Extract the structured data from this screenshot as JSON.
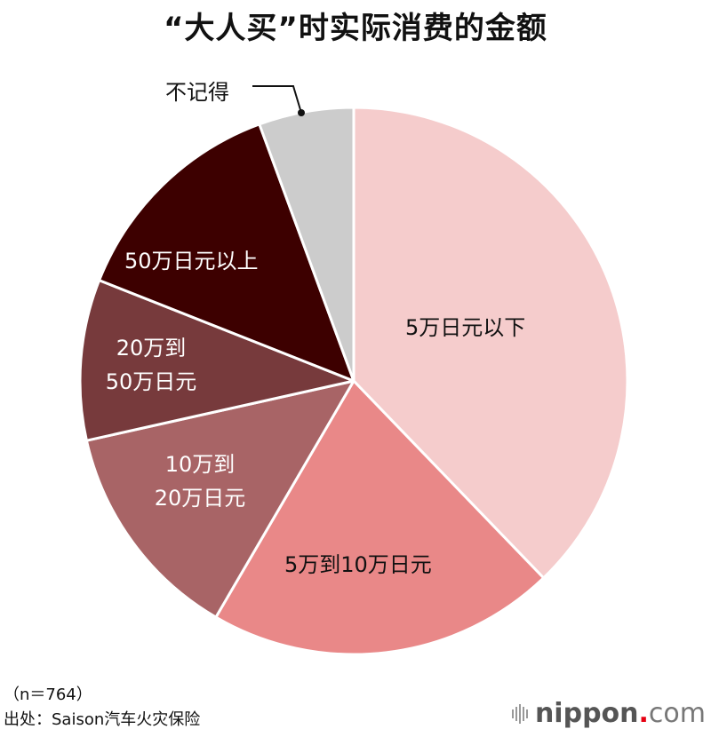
{
  "title": "“大人买”时实际消费的金额",
  "chart_data": {
    "type": "pie",
    "title": "“大人买”时实际消费的金额",
    "start_angle_deg": 0,
    "direction": "clockwise",
    "unit": "%",
    "slices": [
      {
        "label": "5万日元以下",
        "value": 37.8,
        "color": "#f5cccc"
      },
      {
        "label": "5万到10万日元",
        "value": 20.6,
        "color": "#e98888"
      },
      {
        "label": "10万到20万日元",
        "value": 13.1,
        "color": "#a86466"
      },
      {
        "label": "20万到50万日元",
        "value": 9.5,
        "color": "#773a3c"
      },
      {
        "label": "50万日元以上",
        "value": 13.4,
        "color": "#3d0000"
      },
      {
        "label": "不记得",
        "value": 5.6,
        "color": "#cccccc"
      }
    ],
    "sample_size": "n=764",
    "source": "Saison汽车火灾保险"
  },
  "labels": {
    "s0": "5万日元以下",
    "s1": "5万到10万日元",
    "s2_line1": "10万到",
    "s2_line2": "20万日元",
    "s3_line1": "20万到",
    "s3_line2": "50万日元",
    "s4": "50万日元以上",
    "s5": "不记得"
  },
  "footer": {
    "sample": "（n＝764）",
    "source": "出处：Saison汽车火灾保险"
  },
  "logo": {
    "brand": "nippon",
    "dot": ".",
    "tld": "com"
  }
}
